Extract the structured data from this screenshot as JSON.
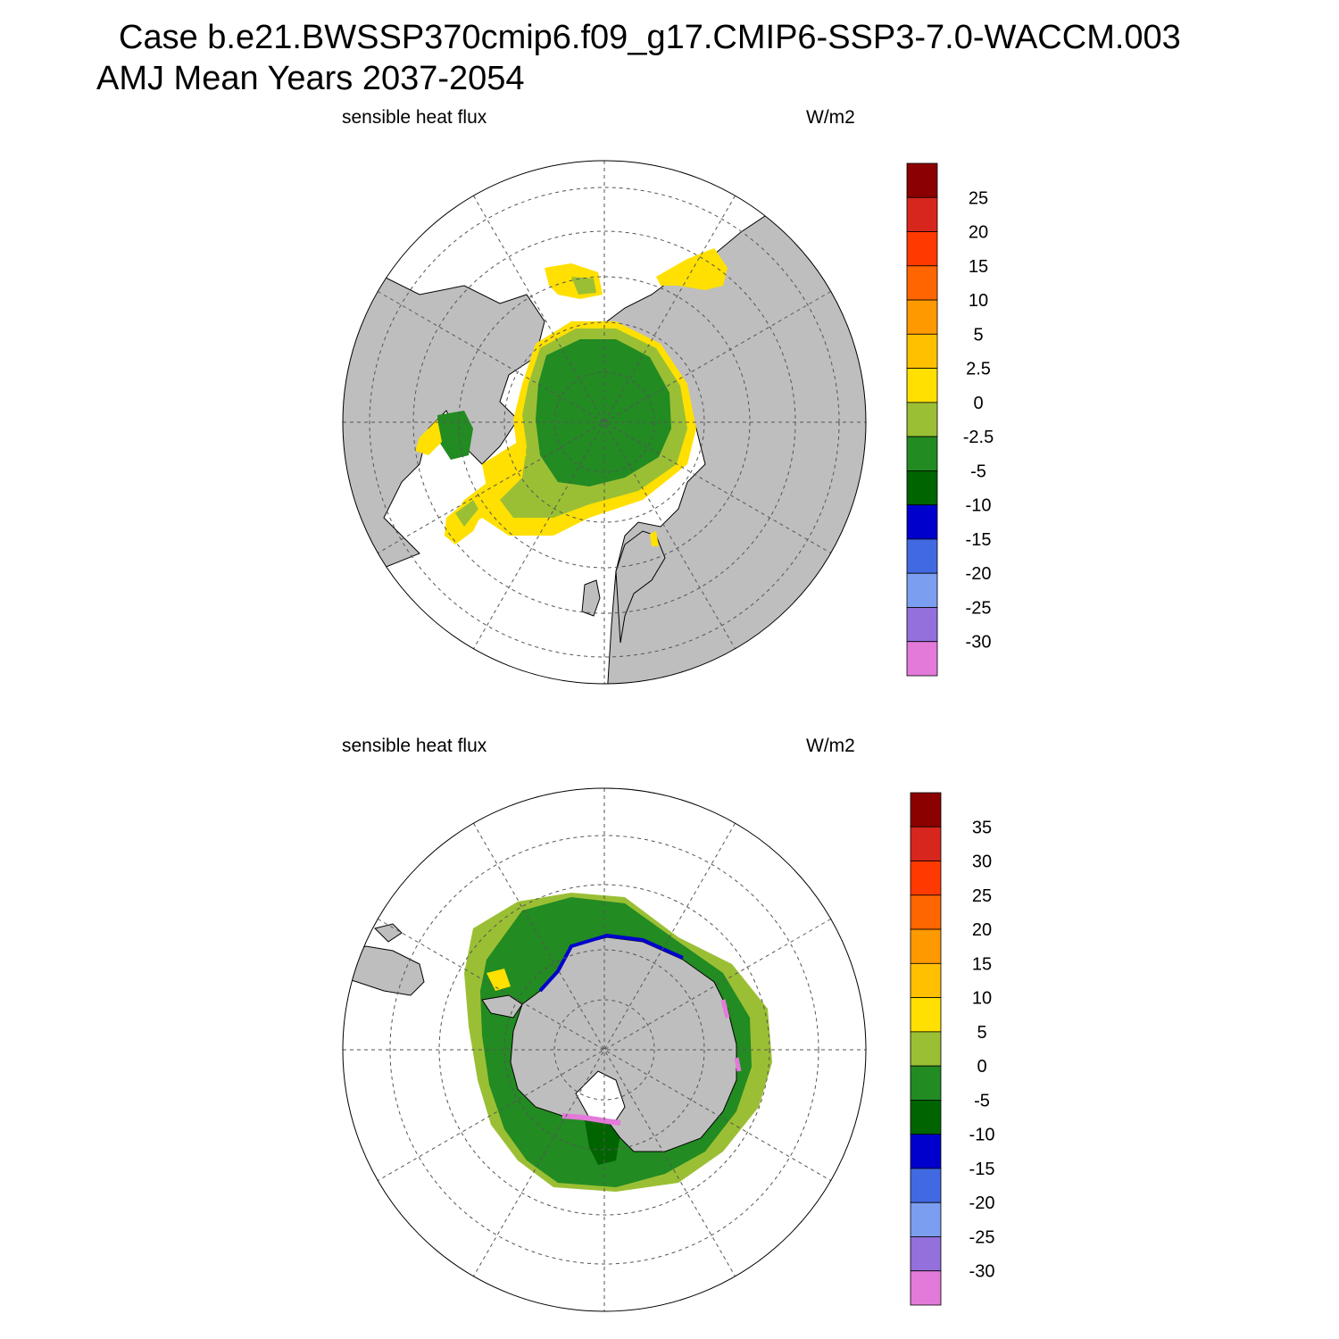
{
  "title": {
    "line1": "Case b.e21.BWSSP370cmip6.f09_g17.CMIP6-SSP3-7.0-WACCM.003",
    "line2": "AMJ Mean   Years 2037-2054"
  },
  "colors": {
    "land": "#bebebe",
    "no_data": "#ffffff",
    "grid": "#555555"
  },
  "panels": [
    {
      "id": "arctic",
      "variable_label": "sensible heat flux",
      "units_label": "W/m2",
      "hemisphere": "north",
      "colorbar": {
        "levels": [
          "25",
          "20",
          "15",
          "10",
          "5",
          "2.5",
          "0",
          "-2.5",
          "-5",
          "-10",
          "-15",
          "-20",
          "-25",
          "-30"
        ],
        "colors": [
          "#8b0000",
          "#d7261e",
          "#ff3a00",
          "#ff6600",
          "#ff9900",
          "#ffc000",
          "#ffe000",
          "#9bbf34",
          "#228b22",
          "#006400",
          "#0000cd",
          "#4169e1",
          "#7b9ef0",
          "#9370db",
          "#e37ad9"
        ]
      }
    },
    {
      "id": "antarctic",
      "variable_label": "sensible heat flux",
      "units_label": "W/m2",
      "hemisphere": "south",
      "colorbar": {
        "levels": [
          "35",
          "30",
          "25",
          "20",
          "15",
          "10",
          "5",
          "0",
          "-5",
          "-10",
          "-15",
          "-20",
          "-25",
          "-30"
        ],
        "colors": [
          "#8b0000",
          "#d7261e",
          "#ff3a00",
          "#ff6600",
          "#ff9900",
          "#ffc000",
          "#ffe000",
          "#9bbf34",
          "#228b22",
          "#006400",
          "#0000cd",
          "#4169e1",
          "#7b9ef0",
          "#9370db",
          "#e37ad9"
        ]
      }
    }
  ]
}
